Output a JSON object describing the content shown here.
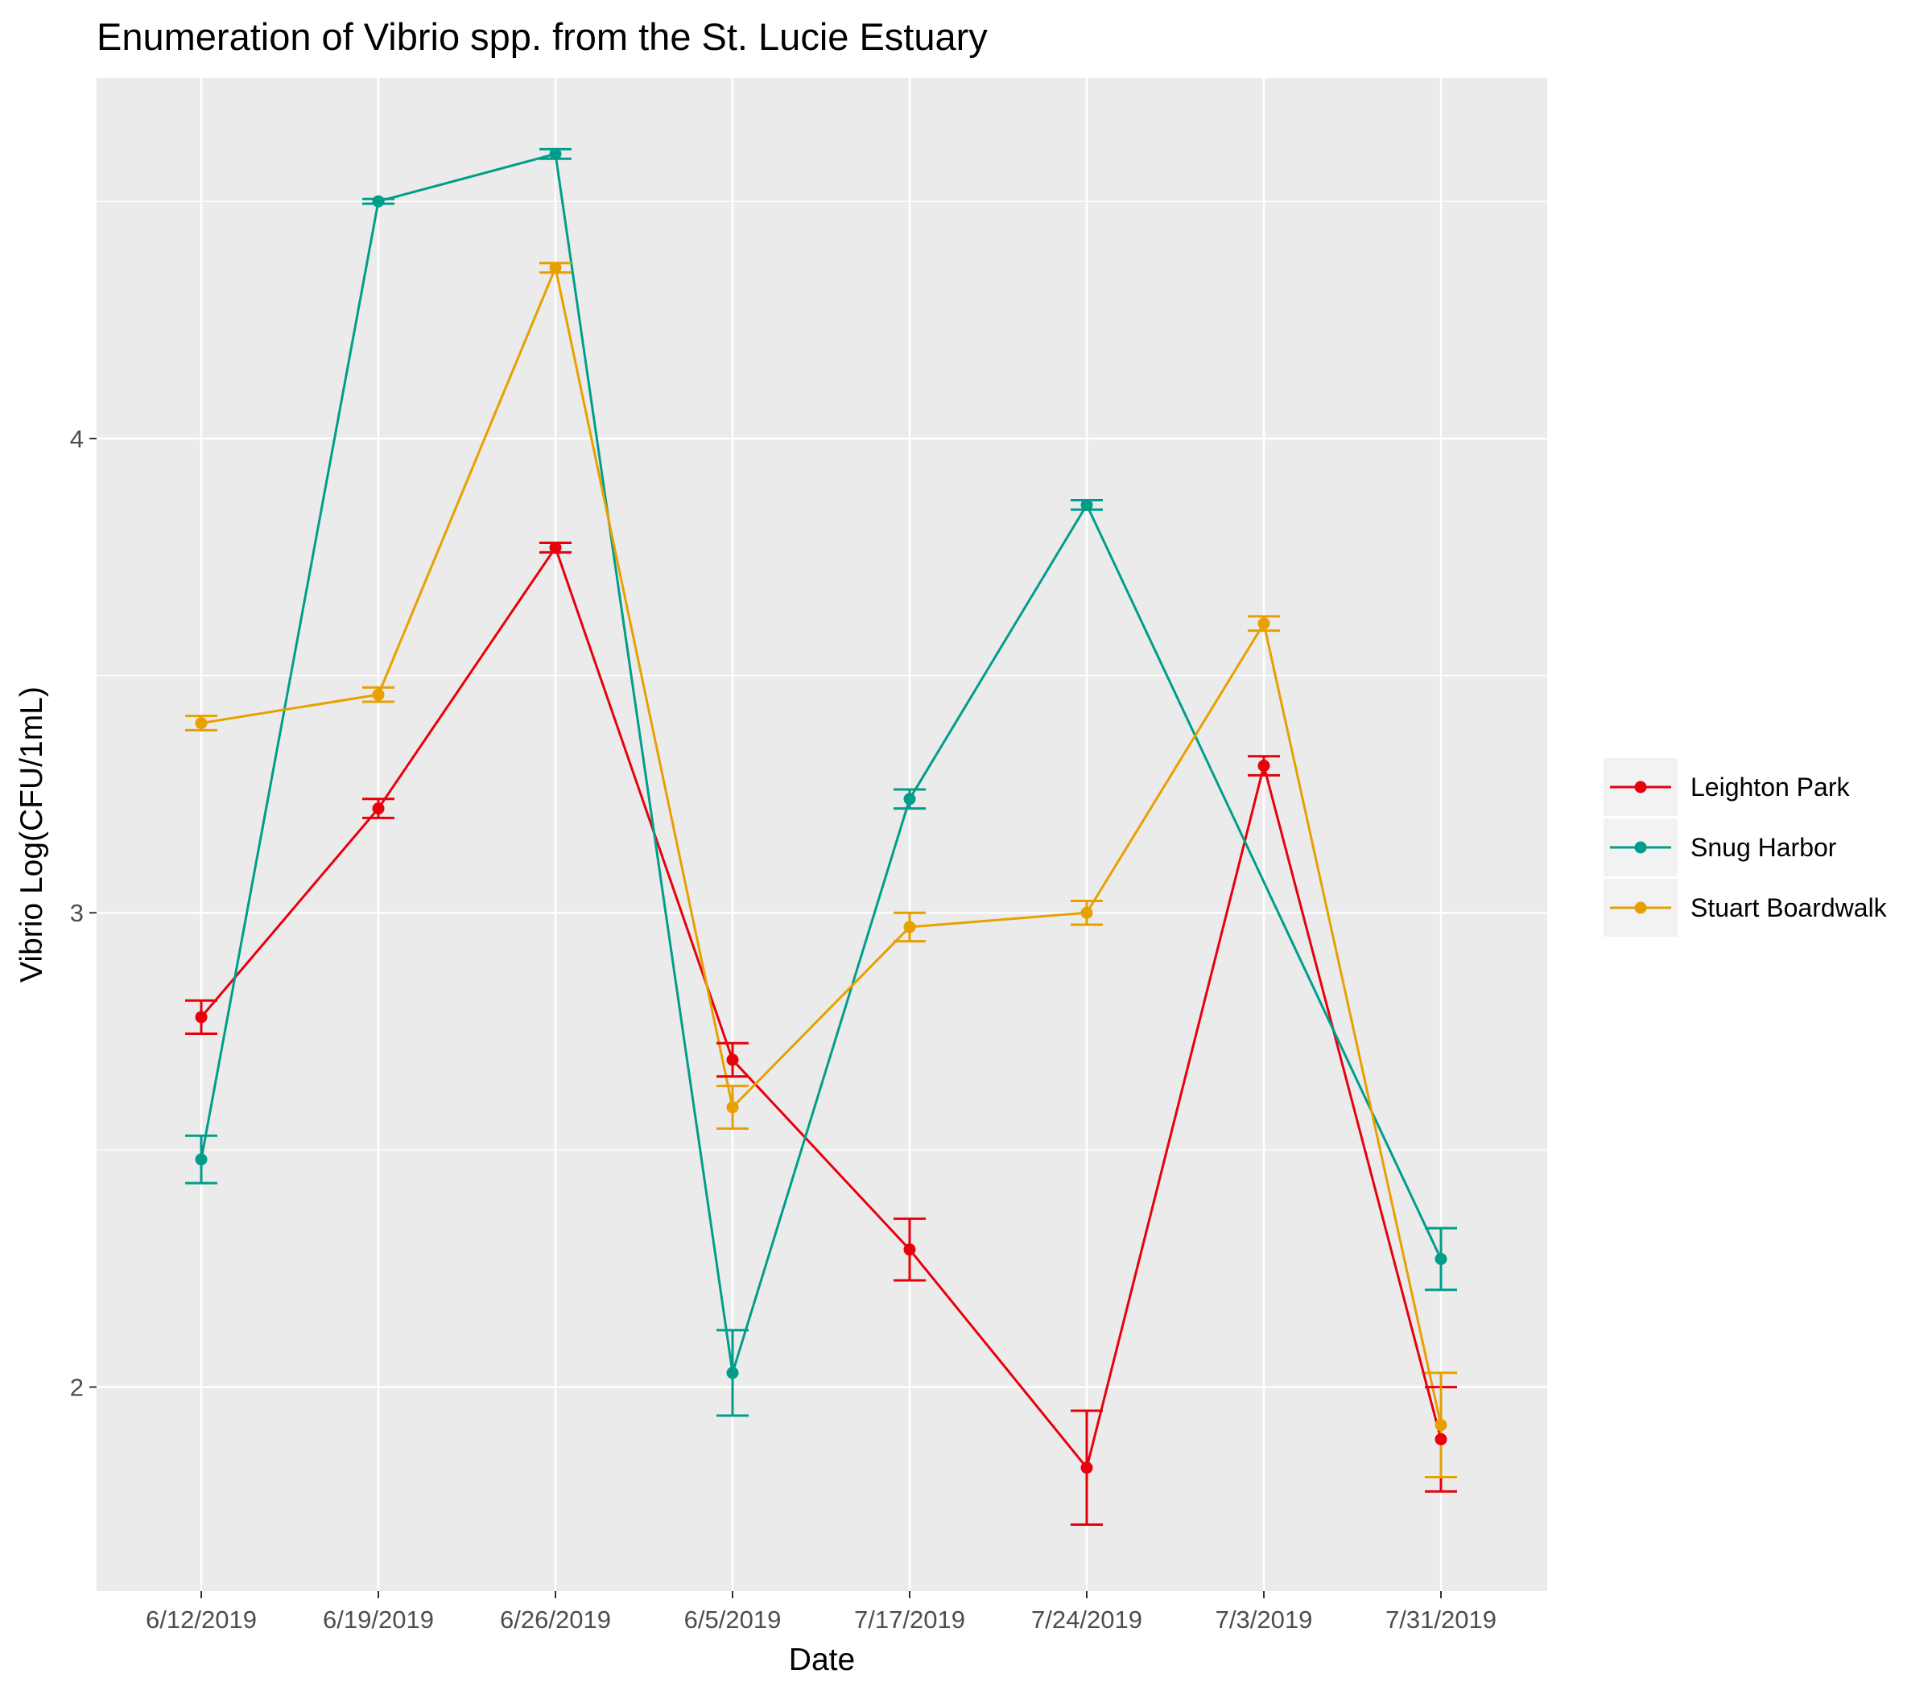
{
  "chart_data": {
    "type": "line",
    "title": "Enumeration of Vibrio spp. from the St. Lucie Estuary",
    "xlabel": "Date",
    "ylabel": "Vibrio Log(CFU/1mL)",
    "categories": [
      "6/12/2019",
      "6/19/2019",
      "6/26/2019",
      "6/5/2019",
      "7/17/2019",
      "7/24/2019",
      "7/3/2019",
      "7/31/2019"
    ],
    "yticks": [
      2,
      3,
      4
    ],
    "ylim": [
      1.57,
      4.76
    ],
    "grid": true,
    "error_bars": true,
    "legend_position": "right",
    "series": [
      {
        "name": "Leighton Park",
        "color": "#E8000B",
        "values": [
          2.78,
          3.22,
          3.77,
          2.69,
          2.29,
          1.83,
          3.31,
          1.89
        ],
        "errors": [
          0.035,
          0.02,
          0.01,
          0.035,
          0.065,
          0.12,
          0.02,
          0.11
        ]
      },
      {
        "name": "Snug Harbor",
        "color": "#009E8A",
        "values": [
          2.48,
          4.5,
          4.6,
          2.03,
          3.24,
          3.86,
          null,
          2.27
        ],
        "errors": [
          0.05,
          0.005,
          0.01,
          0.09,
          0.02,
          0.01,
          null,
          0.065
        ]
      },
      {
        "name": "Stuart Boardwalk",
        "color": "#E8A000",
        "values": [
          3.4,
          3.46,
          4.36,
          2.59,
          2.97,
          3.0,
          3.61,
          1.92
        ],
        "errors": [
          0.015,
          0.015,
          0.01,
          0.045,
          0.03,
          0.025,
          0.015,
          0.11
        ]
      }
    ]
  }
}
